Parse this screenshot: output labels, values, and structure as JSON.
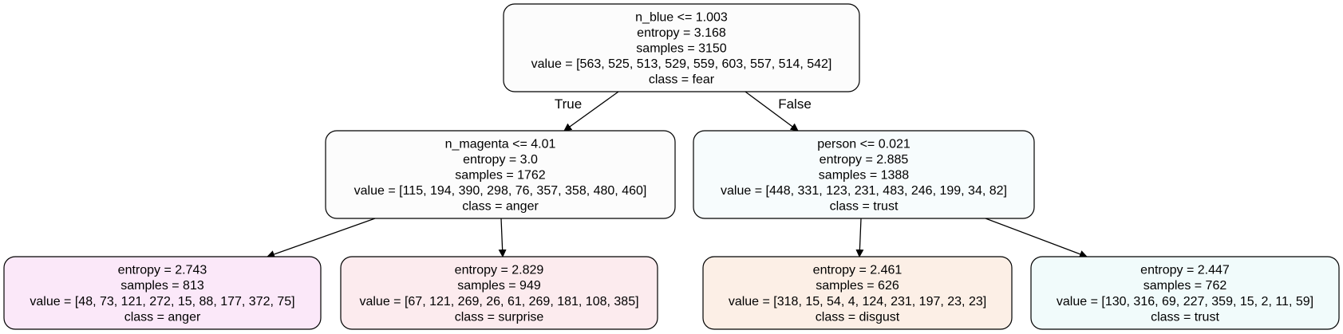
{
  "tree": {
    "nodes": [
      {
        "id": "root",
        "lines": [
          "n_blue <= 1.003",
          "entropy = 3.168",
          "samples = 3150",
          "value = [563, 525, 513, 529, 559, 603, 557, 514, 542]",
          "class = fear"
        ],
        "fill": "#fcfcfc"
      },
      {
        "id": "left",
        "lines": [
          "n_magenta <= 4.01",
          "entropy = 3.0",
          "samples = 1762",
          "value = [115, 194, 390, 298, 76, 357, 358, 480, 460]",
          "class = anger"
        ],
        "fill": "#fcfcfc"
      },
      {
        "id": "right",
        "lines": [
          "person <= 0.021",
          "entropy = 2.885",
          "samples = 1388",
          "value = [448, 331, 123, 231, 483, 246, 199, 34, 82]",
          "class = trust"
        ],
        "fill": "#f7fcfd"
      },
      {
        "id": "left-left",
        "lines": [
          "entropy = 2.743",
          "samples = 813",
          "value = [48, 73, 121, 272, 15, 88, 177, 372, 75]",
          "class = anger"
        ],
        "fill": "#fbe8f9"
      },
      {
        "id": "left-right",
        "lines": [
          "entropy = 2.829",
          "samples = 949",
          "value = [67, 121, 269, 26, 61, 269, 181, 108, 385]",
          "class = surprise"
        ],
        "fill": "#fcebee"
      },
      {
        "id": "right-left",
        "lines": [
          "entropy = 2.461",
          "samples = 626",
          "value = [318, 15, 54, 4, 124, 231, 197, 23, 23]",
          "class = disgust"
        ],
        "fill": "#fcefe6"
      },
      {
        "id": "right-right",
        "lines": [
          "entropy = 2.447",
          "samples = 762",
          "value = [130, 316, 69, 227, 359, 15, 2, 11, 59]",
          "class = trust"
        ],
        "fill": "#f1fbfb"
      }
    ],
    "edges": [
      {
        "from": "root",
        "to": "left",
        "label": "True"
      },
      {
        "from": "root",
        "to": "right",
        "label": "False"
      },
      {
        "from": "left",
        "to": "left-left",
        "label": ""
      },
      {
        "from": "left",
        "to": "left-right",
        "label": ""
      },
      {
        "from": "right",
        "to": "right-left",
        "label": ""
      },
      {
        "from": "right",
        "to": "right-right",
        "label": ""
      }
    ]
  }
}
